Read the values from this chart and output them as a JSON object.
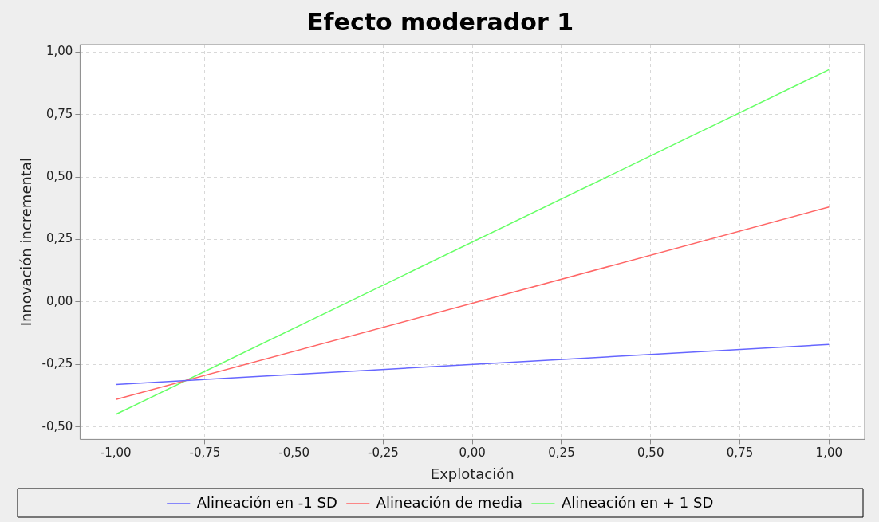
{
  "chart_data": {
    "type": "line",
    "title": "Efecto moderador 1",
    "xlabel": "Explotación",
    "ylabel": "Innovación incremental",
    "x": [
      -1,
      1
    ],
    "series": [
      {
        "name": "Alineación en -1 SD",
        "color": "#6666ff",
        "values": [
          -0.33,
          -0.17
        ]
      },
      {
        "name": "Alineación de media",
        "color": "#ff6666",
        "values": [
          -0.39,
          0.38
        ]
      },
      {
        "name": "Alineación en + 1 SD",
        "color": "#66ff66",
        "values": [
          -0.45,
          0.93
        ]
      }
    ],
    "xlim": [
      -1.1,
      1.1
    ],
    "ylim": [
      -0.55,
      1.03
    ],
    "xticks": [
      {
        "value": -1,
        "label": "-1,00"
      },
      {
        "value": -0.75,
        "label": "-0,75"
      },
      {
        "value": -0.5,
        "label": "-0,50"
      },
      {
        "value": -0.25,
        "label": "-0,25"
      },
      {
        "value": 0,
        "label": "0,00"
      },
      {
        "value": 0.25,
        "label": "0,25"
      },
      {
        "value": 0.5,
        "label": "0,50"
      },
      {
        "value": 0.75,
        "label": "0,75"
      },
      {
        "value": 1,
        "label": "1,00"
      }
    ],
    "yticks": [
      {
        "value": -0.5,
        "label": "-0,50"
      },
      {
        "value": -0.25,
        "label": "-0,25"
      },
      {
        "value": 0,
        "label": "0,00"
      },
      {
        "value": 0.25,
        "label": "0,25"
      },
      {
        "value": 0.5,
        "label": "0,50"
      },
      {
        "value": 0.75,
        "label": "0,75"
      },
      {
        "value": 1,
        "label": "1,00"
      }
    ],
    "grid": true,
    "legend": "bottom",
    "marker": "none",
    "line_style": "solid"
  }
}
